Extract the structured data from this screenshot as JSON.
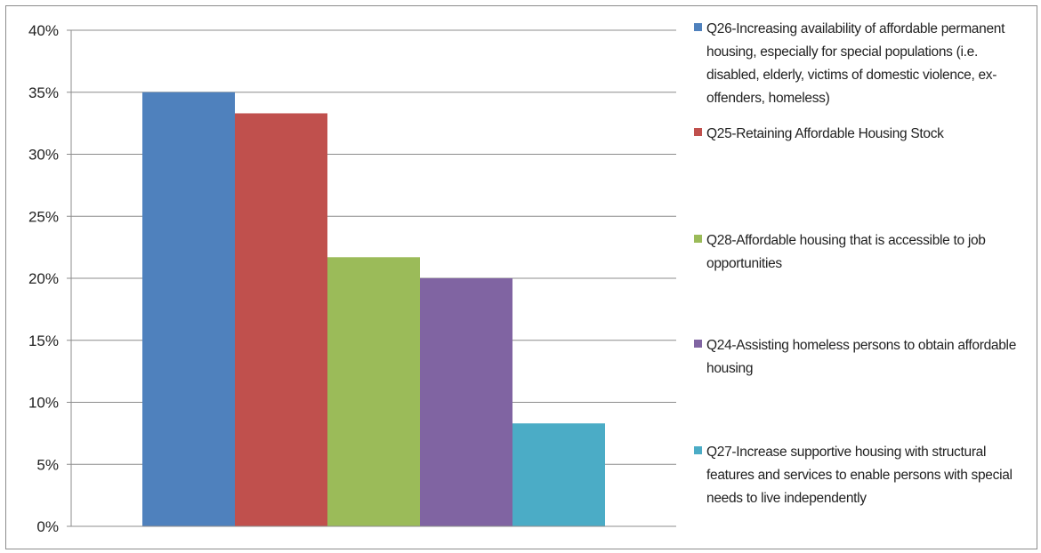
{
  "chart_data": {
    "type": "bar",
    "title": "",
    "xlabel": "",
    "ylabel": "",
    "ylim": [
      0,
      40
    ],
    "y_ticks": [
      "0%",
      "5%",
      "10%",
      "15%",
      "20%",
      "25%",
      "30%",
      "35%",
      "40%"
    ],
    "grid": true,
    "legend_position": "right",
    "series": [
      {
        "name": "Q26-Increasing availability of affordable permanent housing, especially for special populations (i.e. disabled, elderly, victims of domestic violence, ex-offenders, homeless)",
        "value": 35.0,
        "color": "#4f81bd"
      },
      {
        "name": "Q25-Retaining Affordable Housing Stock",
        "value": 33.3,
        "color": "#c0504d"
      },
      {
        "name": "Q28-Affordable housing that is accessible to job opportunities",
        "value": 21.7,
        "color": "#9bbb59"
      },
      {
        "name": "Q24-Assisting homeless persons to obtain affordable housing",
        "value": 20.0,
        "color": "#8064a2"
      },
      {
        "name": "Q27-Increase supportive housing with structural features and services to enable persons with special needs to live independently",
        "value": 8.3,
        "color": "#4bacc6"
      }
    ]
  }
}
